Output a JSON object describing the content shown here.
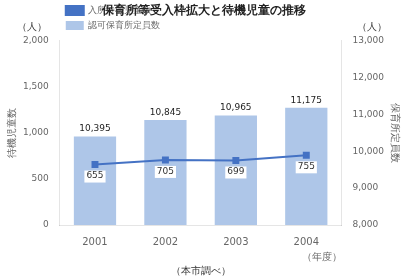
{
  "chart_data": {
    "type": "bar",
    "title": "保育所等受入枠拡大と待機児童の推移",
    "categories": [
      "2001",
      "2002",
      "2003",
      "2004"
    ],
    "series": [
      {
        "name": "認可保育所定員数",
        "type": "bar",
        "color": "#aec6e8",
        "axis": "y2",
        "values": [
          10395,
          10845,
          10965,
          11175
        ],
        "value_labels": [
          "10,395",
          "10,845",
          "10,965",
          "11,175"
        ],
        "data_labels": true
      },
      {
        "name": "入所待機児童数",
        "type": "line",
        "color": "#4472c4",
        "marker": "square",
        "values": [
          655,
          705,
          699,
          755
        ],
        "data_labels": true
      }
    ],
    "ylabel": "待機児童数",
    "y2label": "保育所定員数",
    "xlabel": "（年度）",
    "annotations": [
      "（人）",
      "（人）",
      "（本市調べ）"
    ],
    "ylim": [
      0,
      2000
    ],
    "yticks": [
      0,
      500,
      {
        "value": 1000,
        "label": "1,000"
      },
      {
        "value": 1500,
        "label": "1,500"
      },
      {
        "value": 2000,
        "label": "2,000"
      }
    ],
    "y2lim": [
      8000,
      13000
    ],
    "y2ticks": [
      {
        "value": 8000,
        "label": "8,000"
      },
      {
        "value": 9000,
        "label": "9,000"
      },
      {
        "value": 10000,
        "label": "10,000"
      },
      {
        "value": 11000,
        "label": "11,000"
      },
      {
        "value": 12000,
        "label": "12,000"
      },
      {
        "value": 13000,
        "label": "13,000"
      }
    ],
    "grid": false,
    "legend": "upper left"
  }
}
